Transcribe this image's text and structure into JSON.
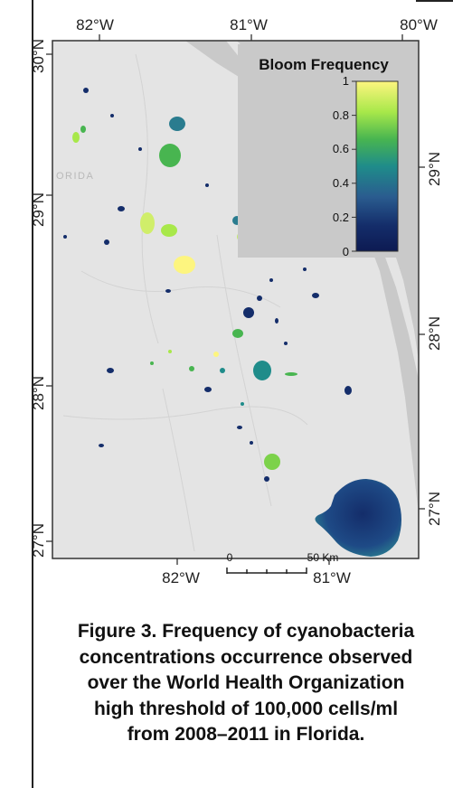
{
  "map": {
    "top_axis_labels": [
      "82°W",
      "81°W",
      "80°W"
    ],
    "bottom_axis_labels": [
      "82°W",
      "81°W"
    ],
    "left_axis_labels": [
      "30°N",
      "29°N",
      "28°N",
      "27°N"
    ],
    "right_axis_labels": [
      "29°N",
      "28°N",
      "27°N"
    ],
    "place_label": "ORIDA",
    "legend": {
      "title": "Bloom Frequency",
      "ticks": [
        "1",
        "0.8",
        "0.6",
        "0.4",
        "0.2",
        "0"
      ],
      "colors": [
        "#fdf57f",
        "#a8e84a",
        "#48b550",
        "#1f8c8a",
        "#2a5c8f",
        "#142d6a",
        "#0d1a52"
      ]
    },
    "scale_bar": {
      "start_label": "0",
      "end_label": "50 Km"
    },
    "colors": {
      "land": "#e4e4e4",
      "ocean": "#c9c9c9",
      "frame": "#333333"
    }
  },
  "caption": {
    "lines": [
      "Figure 3. Frequency of cyanobacteria",
      "concentrations occurrence observed",
      "over the World Health Organization",
      "high threshold of 100,000 cells/ml",
      "from 2008–2011 in Florida."
    ]
  }
}
